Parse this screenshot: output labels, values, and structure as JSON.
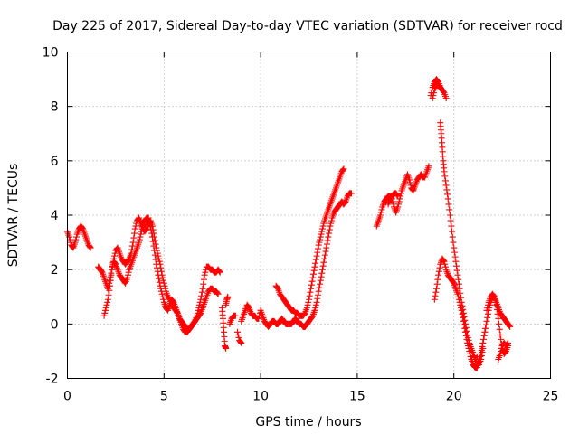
{
  "chart_data": {
    "type": "scatter",
    "title": "Day 225 of 2017, Sidereal Day-to-day VTEC variation (SDTVAR) for receiver rocd",
    "xlabel": "GPS time / hours",
    "ylabel": "SDTVAR / TECUs",
    "xlim": [
      0,
      25
    ],
    "ylim": [
      -2,
      10
    ],
    "xticks": [
      "0",
      "5",
      "10",
      "15",
      "20",
      "25"
    ],
    "yticks": [
      "-2",
      "0",
      "2",
      "4",
      "6",
      "8",
      "10"
    ],
    "grid": true,
    "marker": "plus",
    "color": "#ff0000",
    "series": [
      {
        "name": "seg1",
        "x": [
          0.0,
          0.1,
          0.2,
          0.3,
          0.4,
          0.5,
          0.6,
          0.7,
          0.8,
          0.9,
          1.0,
          1.1,
          1.2
        ],
        "y": [
          3.4,
          3.2,
          2.9,
          2.8,
          3.0,
          3.3,
          3.5,
          3.6,
          3.5,
          3.3,
          3.1,
          2.9,
          2.8
        ]
      },
      {
        "name": "seg2",
        "x": [
          1.6,
          1.7,
          1.8,
          1.9,
          2.0,
          2.1,
          2.2,
          2.3,
          2.4,
          2.5,
          2.6,
          2.7,
          2.8,
          2.9,
          3.0,
          3.1,
          3.2,
          3.3,
          3.4,
          3.5,
          3.6,
          3.7,
          3.8,
          3.9,
          4.0,
          4.1,
          4.2,
          4.3,
          4.4,
          4.5,
          4.6,
          4.7,
          4.8,
          4.9,
          5.0,
          5.1,
          5.2,
          5.3,
          5.4,
          5.5,
          5.6,
          5.7,
          5.8,
          5.9,
          6.0,
          6.1,
          6.2,
          6.3,
          6.4,
          6.5,
          6.6,
          6.7,
          6.8,
          6.9,
          7.0,
          7.1,
          7.2,
          7.3,
          7.4,
          7.5,
          7.6,
          7.7,
          7.8
        ],
        "y": [
          2.1,
          2.0,
          1.9,
          1.7,
          1.5,
          1.3,
          1.6,
          2.0,
          2.3,
          2.2,
          2.0,
          1.8,
          1.7,
          1.6,
          1.5,
          1.7,
          2.0,
          2.2,
          2.4,
          2.6,
          2.8,
          3.0,
          3.3,
          3.6,
          3.8,
          3.9,
          3.9,
          3.6,
          3.2,
          2.7,
          2.2,
          1.8,
          1.4,
          1.1,
          0.8,
          0.6,
          0.5,
          0.7,
          0.9,
          0.8,
          0.6,
          0.4,
          0.2,
          0.0,
          -0.2,
          -0.3,
          -0.3,
          -0.2,
          -0.1,
          0.0,
          0.1,
          0.2,
          0.3,
          0.4,
          0.6,
          0.8,
          1.0,
          1.2,
          1.3,
          1.3,
          1.2,
          1.2,
          1.1
        ]
      },
      {
        "name": "seg3",
        "x": [
          1.9,
          2.0,
          2.1,
          2.2,
          2.3,
          2.4,
          2.5,
          2.6,
          2.7,
          2.8,
          2.9,
          3.0,
          3.1,
          3.2,
          3.3,
          3.4,
          3.5,
          3.6,
          3.7,
          3.8,
          3.9,
          4.0,
          4.1,
          4.2,
          4.3,
          4.4,
          4.5,
          4.6,
          4.7,
          4.8,
          4.9,
          5.0,
          5.1,
          5.2,
          5.3,
          5.4,
          5.5,
          5.6,
          5.7,
          5.8,
          5.9,
          6.0,
          6.1,
          6.2,
          6.3,
          6.4,
          6.5,
          6.6,
          6.7,
          6.8,
          6.9,
          7.0,
          7.1,
          7.2,
          7.3,
          7.4,
          7.5,
          7.6,
          7.7,
          7.8,
          7.9
        ],
        "y": [
          0.3,
          0.6,
          0.9,
          1.4,
          2.0,
          2.4,
          2.7,
          2.8,
          2.6,
          2.4,
          2.3,
          2.2,
          2.3,
          2.4,
          2.6,
          3.0,
          3.5,
          3.8,
          3.9,
          3.7,
          3.5,
          3.4,
          3.5,
          3.7,
          3.8,
          3.6,
          3.2,
          2.8,
          2.5,
          2.2,
          1.8,
          1.5,
          1.2,
          1.0,
          0.9,
          0.7,
          0.6,
          0.5,
          0.4,
          0.2,
          0.1,
          0.0,
          -0.1,
          -0.2,
          -0.2,
          -0.1,
          0.0,
          0.1,
          0.3,
          0.6,
          0.9,
          1.3,
          1.8,
          2.1,
          2.1,
          2.0,
          2.0,
          1.9,
          1.9,
          2.0,
          1.9
        ]
      },
      {
        "name": "seg4",
        "x": [
          8.0,
          8.05,
          8.1,
          8.15,
          8.2
        ],
        "y": [
          0.6,
          0.2,
          -0.3,
          -0.8,
          -0.9
        ]
      },
      {
        "name": "seg5",
        "x": [
          8.2,
          8.25,
          8.3
        ],
        "y": [
          0.7,
          0.9,
          1.0
        ]
      },
      {
        "name": "seg6",
        "x": [
          8.4,
          8.5,
          8.6,
          8.7
        ],
        "y": [
          0.0,
          0.2,
          0.3,
          0.3
        ]
      },
      {
        "name": "seg7",
        "x": [
          8.8,
          8.9,
          9.0
        ],
        "y": [
          -0.3,
          -0.6,
          -0.7
        ]
      },
      {
        "name": "seg8",
        "x": [
          9.0,
          9.1,
          9.2,
          9.3,
          9.4,
          9.5,
          9.6,
          9.7,
          9.8,
          9.9,
          10.0,
          10.1,
          10.2,
          10.3,
          10.4,
          10.5,
          10.6,
          10.7,
          10.8,
          10.9,
          11.0,
          11.1,
          11.2,
          11.3,
          11.4,
          11.5,
          11.6,
          11.7,
          11.8,
          11.9,
          12.0,
          12.1,
          12.2,
          12.3,
          12.4,
          12.5,
          12.6,
          12.7,
          12.8,
          12.9,
          13.0,
          13.1,
          13.2,
          13.3,
          13.4,
          13.5,
          13.6,
          13.7,
          13.8,
          13.9,
          14.0,
          14.1,
          14.2,
          14.3,
          14.4,
          14.5,
          14.6,
          14.7
        ],
        "y": [
          0.1,
          0.3,
          0.5,
          0.7,
          0.6,
          0.4,
          0.3,
          0.3,
          0.2,
          0.2,
          0.5,
          0.3,
          0.1,
          0.0,
          -0.1,
          0.0,
          0.1,
          0.1,
          0.0,
          0.0,
          0.1,
          0.2,
          0.1,
          0.0,
          0.0,
          0.0,
          0.0,
          0.1,
          0.2,
          0.1,
          0.0,
          0.0,
          -0.1,
          -0.1,
          0.0,
          0.1,
          0.2,
          0.3,
          0.5,
          0.8,
          1.2,
          1.6,
          2.0,
          2.4,
          2.8,
          3.2,
          3.6,
          3.9,
          4.1,
          4.2,
          4.3,
          4.4,
          4.5,
          4.4,
          4.5,
          4.7,
          4.8,
          4.8
        ]
      },
      {
        "name": "seg9",
        "x": [
          10.8,
          10.9,
          11.0,
          11.1,
          11.2,
          11.3,
          11.4,
          11.5,
          11.6,
          11.7,
          11.8,
          11.9,
          12.0,
          12.1,
          12.2,
          12.3,
          12.4,
          12.5,
          12.6,
          12.7,
          12.8,
          12.9,
          13.0,
          13.1,
          13.2,
          13.3,
          13.4,
          13.5,
          13.6,
          13.7,
          13.8,
          13.9,
          14.0,
          14.1,
          14.2,
          14.3
        ],
        "y": [
          1.4,
          1.3,
          1.1,
          1.0,
          0.9,
          0.8,
          0.7,
          0.6,
          0.5,
          0.5,
          0.4,
          0.4,
          0.3,
          0.3,
          0.3,
          0.4,
          0.6,
          0.9,
          1.3,
          1.7,
          2.1,
          2.5,
          2.9,
          3.2,
          3.5,
          3.8,
          4.0,
          4.2,
          4.4,
          4.6,
          4.8,
          5.0,
          5.2,
          5.4,
          5.6,
          5.7
        ]
      },
      {
        "name": "seg10",
        "x": [
          16.0,
          16.1,
          16.2,
          16.3,
          16.4,
          16.5,
          16.6,
          16.7,
          16.8,
          16.9,
          17.0,
          17.1,
          17.2,
          17.3,
          17.4,
          17.5,
          17.6,
          17.7,
          17.8,
          17.9,
          18.0,
          18.1,
          18.2,
          18.3,
          18.4,
          18.5,
          18.6,
          18.7
        ],
        "y": [
          3.6,
          3.8,
          4.0,
          4.3,
          4.5,
          4.6,
          4.7,
          4.7,
          4.6,
          4.3,
          4.1,
          4.3,
          4.6,
          4.9,
          5.1,
          5.3,
          5.5,
          5.3,
          5.0,
          4.9,
          5.1,
          5.3,
          5.4,
          5.5,
          5.4,
          5.4,
          5.6,
          5.8
        ]
      },
      {
        "name": "seg11",
        "x": [
          16.6,
          16.7,
          16.8,
          16.9,
          17.0,
          17.1
        ],
        "y": [
          4.4,
          4.6,
          4.7,
          4.8,
          4.8,
          4.7
        ]
      },
      {
        "name": "seg12",
        "x": [
          18.8,
          18.9,
          19.0,
          19.1,
          19.2,
          19.3,
          19.4,
          19.5,
          19.6
        ],
        "y": [
          8.4,
          8.7,
          8.9,
          9.0,
          8.9,
          8.7,
          8.6,
          8.5,
          8.3
        ]
      },
      {
        "name": "seg13",
        "x": [
          18.9,
          19.0,
          19.1,
          19.2,
          19.3
        ],
        "y": [
          8.3,
          8.6,
          8.8,
          8.8,
          8.7
        ]
      },
      {
        "name": "seg14",
        "x": [
          19.3,
          19.35,
          19.4,
          19.45,
          19.5,
          19.6,
          19.7,
          19.8,
          19.9,
          20.0,
          20.1,
          20.2,
          20.3,
          20.4,
          20.5,
          20.6,
          20.7,
          20.8,
          20.9,
          21.0,
          21.1,
          21.2
        ],
        "y": [
          7.4,
          7.0,
          6.5,
          6.0,
          5.6,
          5.1,
          4.6,
          4.0,
          3.4,
          2.8,
          2.3,
          1.8,
          1.3,
          0.8,
          0.4,
          0.0,
          -0.4,
          -0.7,
          -0.9,
          -1.1,
          -1.3,
          -1.5
        ]
      },
      {
        "name": "seg15",
        "x": [
          19.0,
          19.1,
          19.2,
          19.3,
          19.4,
          19.5,
          19.6,
          19.7,
          19.8,
          19.9,
          20.0,
          20.1,
          20.2,
          20.3,
          20.4,
          20.5,
          20.6,
          20.7,
          20.8,
          20.9,
          21.0,
          21.1,
          21.2,
          21.3,
          21.4,
          21.5,
          21.6,
          21.7,
          21.8,
          21.9,
          22.0,
          22.1,
          22.2,
          22.3,
          22.4,
          22.5,
          22.6,
          22.7,
          22.8,
          22.9
        ],
        "y": [
          0.9,
          1.3,
          1.8,
          2.2,
          2.4,
          2.3,
          2.0,
          1.8,
          1.7,
          1.6,
          1.5,
          1.3,
          1.1,
          0.8,
          0.5,
          0.1,
          -0.3,
          -0.7,
          -1.0,
          -1.3,
          -1.5,
          -1.6,
          -1.6,
          -1.4,
          -1.1,
          -0.7,
          -0.3,
          0.1,
          0.5,
          0.8,
          1.0,
          1.0,
          0.8,
          0.6,
          0.4,
          0.3,
          0.2,
          0.1,
          0.0,
          -0.1
        ]
      },
      {
        "name": "seg16",
        "x": [
          21.7,
          21.8,
          21.9,
          22.0,
          22.1,
          22.2,
          22.3,
          22.4,
          22.5,
          22.6,
          22.7,
          22.8
        ],
        "y": [
          0.5,
          0.8,
          1.0,
          1.1,
          1.0,
          0.7,
          0.2,
          -0.4,
          -0.9,
          -1.1,
          -1.0,
          -0.8
        ]
      },
      {
        "name": "seg17",
        "x": [
          22.3,
          22.4,
          22.5,
          22.6,
          22.7,
          22.8
        ],
        "y": [
          -1.3,
          -1.1,
          -0.8,
          -0.7,
          -0.8,
          -0.7
        ]
      },
      {
        "name": "seg18",
        "x": [
          21.2,
          21.3,
          21.4,
          21.5
        ],
        "y": [
          -1.2,
          -1.5,
          -1.3,
          -0.9
        ]
      }
    ]
  }
}
